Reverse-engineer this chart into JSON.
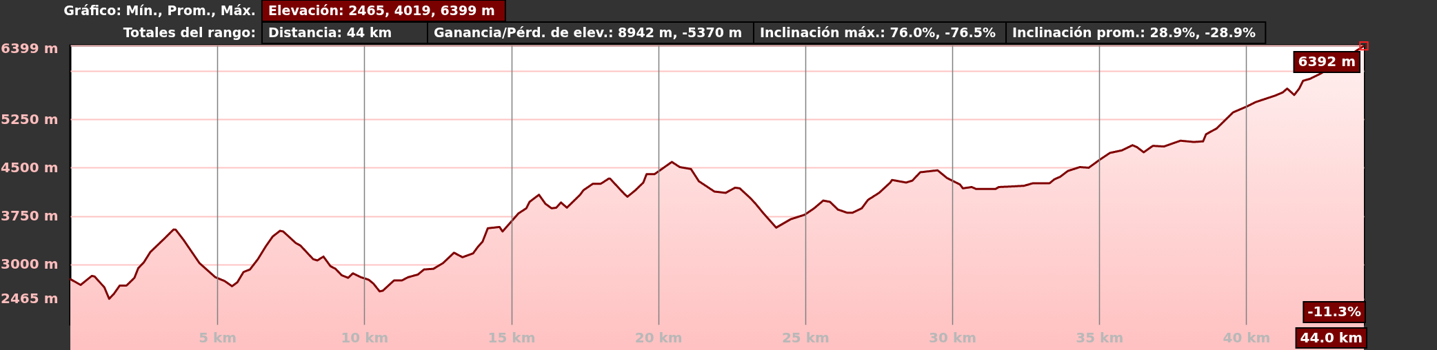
{
  "chart_data": {
    "type": "area",
    "annotations": [
      "Gráfico: Mín., Prom., Máx.",
      "Elevación: 2465, 4019, 6399 m",
      "Totales del rango:",
      "Distancia: 44 km",
      "Ganancia/Pérd. de elev.: 8942 m, -5370 m",
      "Inclinación máx.: 76.0%, -76.5%",
      "Inclinación prom.: 28.9%, -28.9%",
      {
        "text": "6392 m",
        "x": 44,
        "y": 6392
      },
      "-11.3%",
      {
        "text": "44.0 km",
        "x": 44
      }
    ],
    "x": [
      0,
      0.35,
      0.73,
      0.83,
      1.16,
      1.32,
      1.48,
      1.68,
      1.91,
      2.18,
      2.31,
      2.5,
      2.72,
      3.2,
      3.51,
      3.58,
      3.85,
      4.39,
      4.93,
      5.25,
      5.5,
      5.68,
      5.89,
      6.11,
      6.38,
      6.65,
      6.88,
      7.13,
      7.24,
      7.67,
      7.83,
      8.26,
      8.4,
      8.61,
      8.85,
      9.02,
      9.23,
      9.45,
      9.61,
      9.88,
      10.15,
      10.31,
      10.52,
      10.63,
      11.01,
      11.28,
      11.49,
      11.82,
      12.03,
      12.35,
      12.68,
      13.05,
      13.34,
      13.7,
      13.86,
      14.02,
      14.2,
      14.6,
      14.7,
      14.97,
      15.24,
      15.51,
      15.62,
      15.94,
      16.16,
      16.37,
      16.53,
      16.69,
      16.89,
      17.34,
      17.45,
      17.77,
      18.04,
      18.31,
      18.36,
      18.85,
      18.95,
      19.22,
      19.49,
      19.6,
      19.87,
      20.46,
      20.73,
      21.11,
      21.38,
      21.91,
      22.29,
      22.61,
      22.77,
      23.15,
      23.31,
      23.58,
      24.01,
      24.5,
      24.98,
      25.3,
      25.61,
      25.84,
      26.11,
      26.43,
      26.6,
      26.92,
      27.13,
      27.51,
      27.89,
      27.95,
      28.43,
      28.64,
      28.91,
      29.5,
      29.82,
      30.26,
      30.36,
      30.66,
      30.81,
      31.47,
      31.58,
      32.04,
      32.44,
      32.75,
      33.31,
      33.47,
      33.67,
      33.93,
      34.34,
      34.64,
      35.0,
      35.36,
      35.77,
      36.13,
      36.28,
      36.51,
      36.82,
      37.2,
      37.76,
      38.22,
      38.53,
      38.63,
      38.99,
      39.55,
      40.01,
      40.32,
      40.98,
      41.24,
      41.39,
      41.63,
      41.8,
      41.93,
      42.16,
      42.52,
      44
    ],
    "series": [
      {
        "color": "#800000",
        "values": [
          2770,
          2680,
          2820,
          2810,
          2640,
          2465,
          2540,
          2670,
          2670,
          2790,
          2940,
          3030,
          3190,
          3400,
          3540,
          3540,
          3380,
          3020,
          2800,
          2740,
          2660,
          2720,
          2880,
          2920,
          3080,
          3280,
          3430,
          3520,
          3510,
          3330,
          3290,
          3080,
          3060,
          3120,
          2970,
          2930,
          2830,
          2790,
          2860,
          2800,
          2760,
          2700,
          2580,
          2590,
          2750,
          2750,
          2800,
          2840,
          2920,
          2930,
          3020,
          3180,
          3110,
          3170,
          3270,
          3350,
          3560,
          3580,
          3510,
          3650,
          3790,
          3870,
          3970,
          4080,
          3940,
          3870,
          3880,
          3960,
          3880,
          4080,
          4150,
          4250,
          4250,
          4330,
          4330,
          4090,
          4050,
          4150,
          4270,
          4400,
          4400,
          4590,
          4510,
          4480,
          4290,
          4130,
          4110,
          4190,
          4180,
          4020,
          3940,
          3790,
          3570,
          3700,
          3770,
          3870,
          3990,
          3970,
          3850,
          3800,
          3800,
          3870,
          4000,
          4110,
          4270,
          4310,
          4270,
          4300,
          4430,
          4460,
          4340,
          4240,
          4180,
          4200,
          4170,
          4170,
          4200,
          4210,
          4220,
          4260,
          4260,
          4320,
          4360,
          4450,
          4510,
          4500,
          4620,
          4730,
          4770,
          4850,
          4820,
          4740,
          4840,
          4830,
          4920,
          4900,
          4910,
          5020,
          5110,
          5360,
          5450,
          5520,
          5620,
          5670,
          5730,
          5630,
          5730,
          5850,
          5880,
          5960,
          6392
        ]
      }
    ],
    "xlim": [
      0,
      44
    ],
    "ylim": [
      2065,
      6399
    ],
    "xticks": [
      {
        "value": 5,
        "label": "5 km"
      },
      {
        "value": 10,
        "label": "10 km"
      },
      {
        "value": 15,
        "label": "15 km"
      },
      {
        "value": 20,
        "label": "20 km"
      },
      {
        "value": 25,
        "label": "25 km"
      },
      {
        "value": 30,
        "label": "30 km"
      },
      {
        "value": 35,
        "label": "35 km"
      },
      {
        "value": 40,
        "label": "40 km"
      }
    ],
    "yticks": [
      {
        "value": 2465,
        "label": "2465 m"
      },
      {
        "value": 3000,
        "label": "3000 m"
      },
      {
        "value": 3750,
        "label": "3750 m"
      },
      {
        "value": 4500,
        "label": "4500 m"
      },
      {
        "value": 5250,
        "label": "5250 m"
      },
      {
        "value": 6000,
        "label": null
      },
      {
        "value": 6399,
        "label": "6399 m"
      }
    ],
    "grid": true
  }
}
